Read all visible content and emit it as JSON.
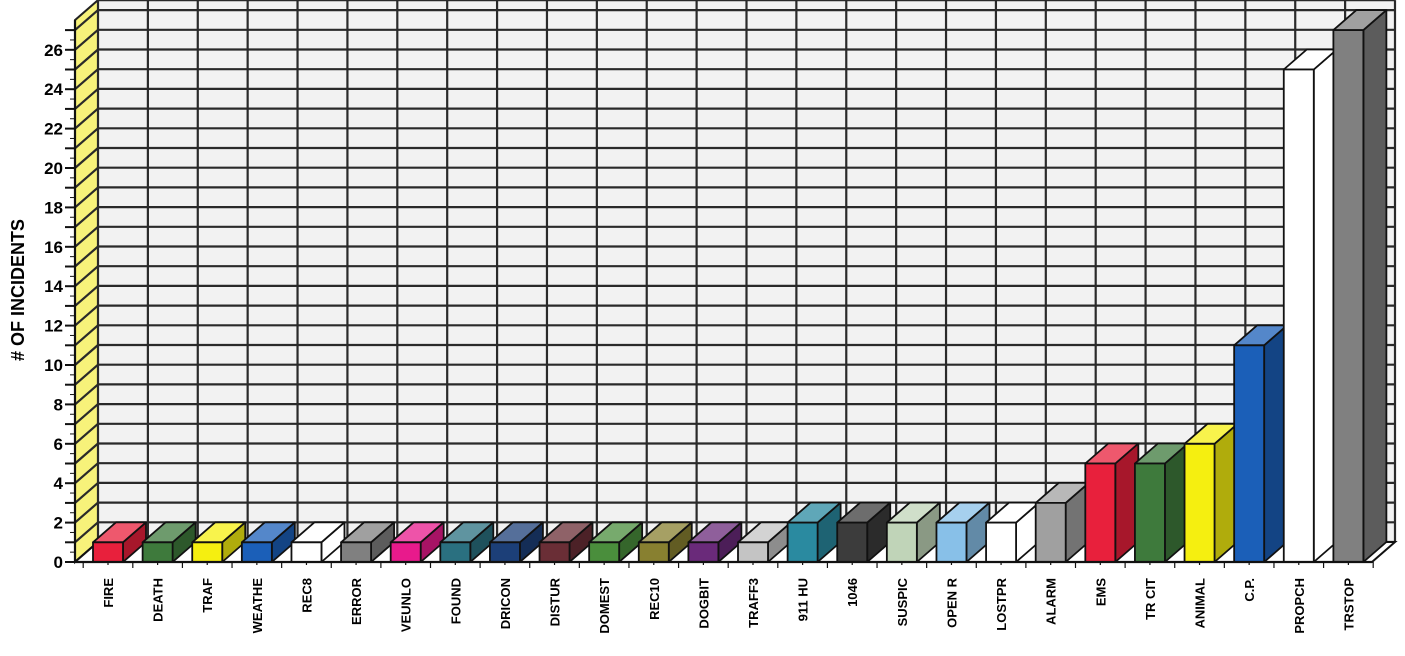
{
  "chart_data": {
    "type": "bar",
    "ylabel": "# OF INCIDENTS",
    "xlabel": "",
    "ylim": [
      0,
      27
    ],
    "yticks": [
      0,
      2,
      4,
      6,
      8,
      10,
      12,
      14,
      16,
      18,
      20,
      22,
      24,
      26
    ],
    "grid": true,
    "categories": [
      "FIRE",
      "DEATH",
      "TRAF",
      "WEATHE",
      "REC8",
      "ERROR",
      "VEUNLO",
      "FOUND",
      "DRICON",
      "DISTUR",
      "DOMEST",
      "REC10",
      "DOGBIT",
      "TRAFF3",
      "911 HU",
      "1046",
      "SUSPIC",
      "OPEN R",
      "LOSTPR",
      "ALARM",
      "EMS",
      "TR CIT",
      "ANIMAL",
      "C.P.",
      "PROPCH",
      "TRSTOP"
    ],
    "values": [
      1,
      1,
      1,
      1,
      1,
      1,
      1,
      1,
      1,
      1,
      1,
      1,
      1,
      1,
      2,
      2,
      2,
      2,
      2,
      3,
      5,
      5,
      6,
      11,
      25,
      27
    ],
    "colors": [
      "#e8203c",
      "#3e7a3c",
      "#f5ef10",
      "#1b5fb8",
      "#ffffff",
      "#808080",
      "#e81a8c",
      "#2a7080",
      "#1c3f78",
      "#6a2e36",
      "#4a8e3c",
      "#888030",
      "#6a2a7a",
      "#c4c4c4",
      "#2a8aa0",
      "#3c3c3c",
      "#c0d4b8",
      "#88c0e8",
      "#ffffff",
      "#a0a0a0",
      "#e8203c",
      "#3e7a3c",
      "#f5ef10",
      "#1b5fb8",
      "#ffffff",
      "#808080"
    ],
    "wall_color": "#f7f27a"
  }
}
